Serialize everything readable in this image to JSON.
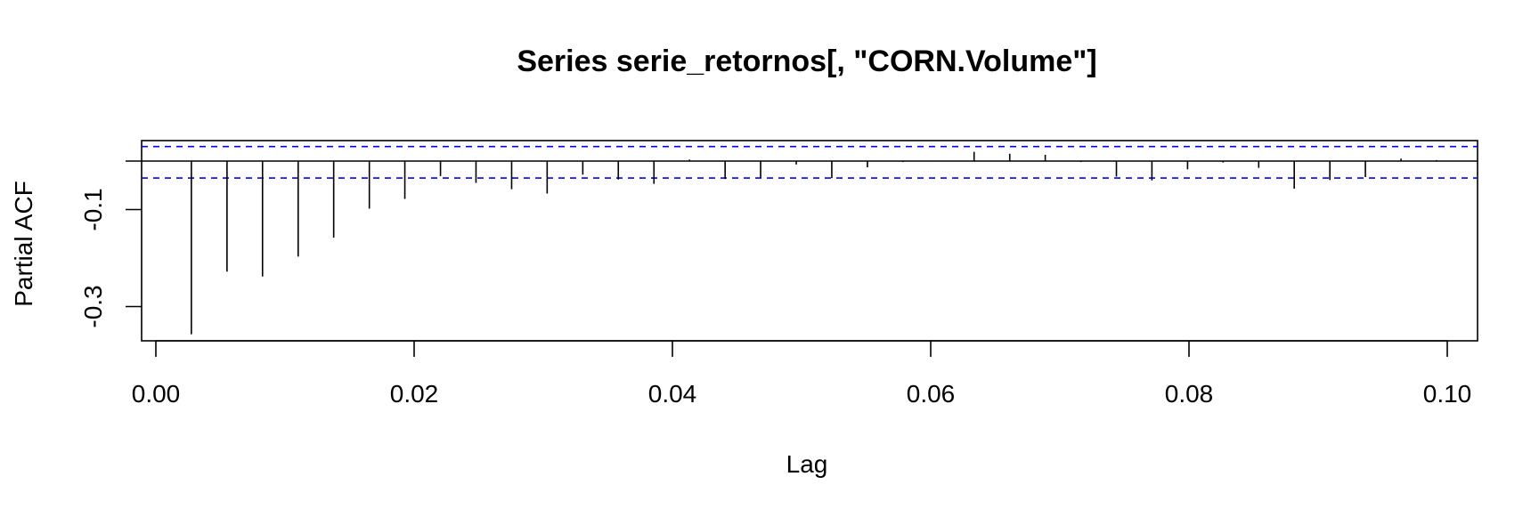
{
  "chart_data": {
    "type": "bar",
    "title": "Series  serie_retornos[, \"CORN.Volume\"]",
    "xlabel": "Lag",
    "ylabel": "Partial ACF",
    "xlim": [
      0,
      0.1
    ],
    "ylim": [
      -0.36,
      0.04
    ],
    "x_ticks": [
      0.0,
      0.02,
      0.04,
      0.06,
      0.08,
      0.1
    ],
    "x_tick_labels": [
      "0.00",
      "0.02",
      "0.04",
      "0.06",
      "0.08",
      "0.10"
    ],
    "y_ticks": [
      -0.1,
      -0.3
    ],
    "y_tick_labels": [
      "-0.1",
      "-0.3"
    ],
    "confidence_limits": [
      0.03,
      -0.035
    ],
    "confidence_color": "#0000ff",
    "bar_color": "#000000",
    "grid": false,
    "lags": [
      0.00275,
      0.00551,
      0.00826,
      0.01102,
      0.01377,
      0.01653,
      0.01928,
      0.02204,
      0.02479,
      0.02755,
      0.0303,
      0.03306,
      0.03581,
      0.03857,
      0.04132,
      0.04408,
      0.04683,
      0.04959,
      0.05234,
      0.0551,
      0.05785,
      0.06061,
      0.06336,
      0.06612,
      0.06887,
      0.07163,
      0.07438,
      0.07713,
      0.07989,
      0.08264,
      0.0854,
      0.08815,
      0.09091,
      0.09366,
      0.09642,
      0.09917
    ],
    "values": [
      -0.357,
      -0.228,
      -0.238,
      -0.197,
      -0.158,
      -0.098,
      -0.078,
      -0.031,
      -0.045,
      -0.058,
      -0.067,
      -0.028,
      -0.038,
      -0.047,
      0.003,
      -0.037,
      -0.034,
      -0.007,
      -0.035,
      -0.013,
      -0.002,
      0.001,
      0.019,
      0.015,
      0.013,
      -0.002,
      -0.032,
      -0.04,
      -0.017,
      -0.003,
      -0.014,
      -0.057,
      -0.039,
      -0.033,
      0.005,
      0.002
    ]
  }
}
